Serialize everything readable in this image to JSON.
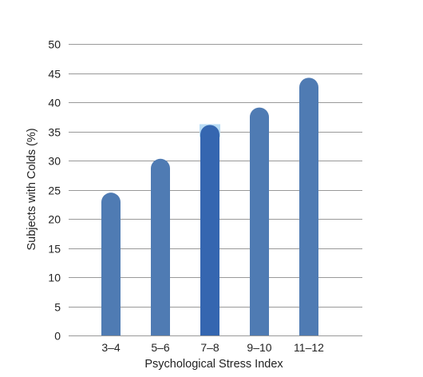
{
  "chart_data": {
    "type": "bar",
    "title": "",
    "xlabel": "Psychological Stress Index",
    "ylabel": "Subjects with Colds (%)",
    "categories": [
      "3–4",
      "5–6",
      "7–8",
      "9–10",
      "11–12"
    ],
    "values": [
      24.5,
      30.3,
      36.1,
      39.1,
      44.2
    ],
    "ylim": [
      0,
      50
    ],
    "yticks": [
      0,
      5,
      10,
      15,
      20,
      25,
      30,
      35,
      40,
      45,
      50
    ],
    "grid": true,
    "legend": "none",
    "bar_style": "rounded-top",
    "highlighted_category": "7–8",
    "colors": {
      "bar": "#4f7bb3",
      "bar_highlight": "#3566b0",
      "highlight_glow": "#b9dcf5",
      "grid": "#999999",
      "text": "#222222"
    }
  }
}
